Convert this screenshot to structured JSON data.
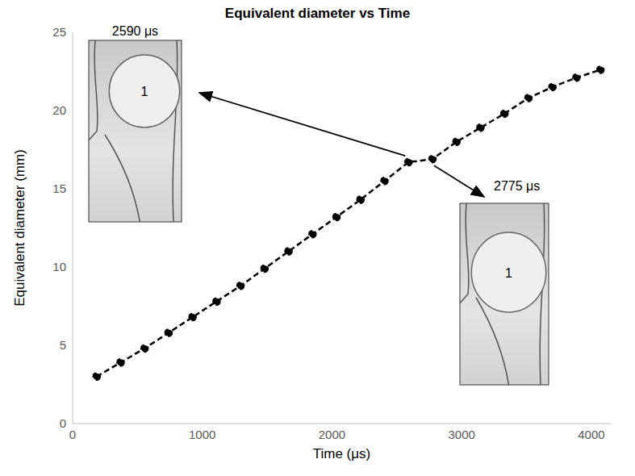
{
  "chart_data": {
    "type": "line",
    "title": "Equivalent diameter vs Time",
    "x_label": "Time (μs)",
    "y_label": "Equivalent diameter (mm)",
    "x": [
      185,
      370,
      555,
      740,
      925,
      1110,
      1295,
      1480,
      1665,
      1850,
      2035,
      2220,
      2405,
      2590,
      2775,
      2960,
      3145,
      3330,
      3515,
      3700,
      3885,
      4070
    ],
    "values": [
      3.0,
      3.9,
      4.8,
      5.8,
      6.8,
      7.8,
      8.8,
      9.9,
      11.0,
      12.1,
      13.2,
      14.3,
      15.5,
      16.7,
      16.9,
      18.0,
      18.9,
      19.8,
      20.8,
      21.5,
      22.1,
      22.6
    ],
    "xlim": [
      0,
      4150
    ],
    "xticks": [
      0,
      1000,
      2000,
      3000,
      4000
    ],
    "ylim": [
      0,
      25
    ],
    "yticks": [
      0,
      5,
      10,
      15,
      20,
      25
    ],
    "color": "#000000",
    "marker": "circle",
    "line_style": "dashed",
    "grid": false,
    "annotations": [
      {
        "label": "2590 μs",
        "x": 2590,
        "inset_text": "1"
      },
      {
        "label": "2775 μs",
        "x": 2775,
        "inset_text": "1"
      }
    ]
  }
}
